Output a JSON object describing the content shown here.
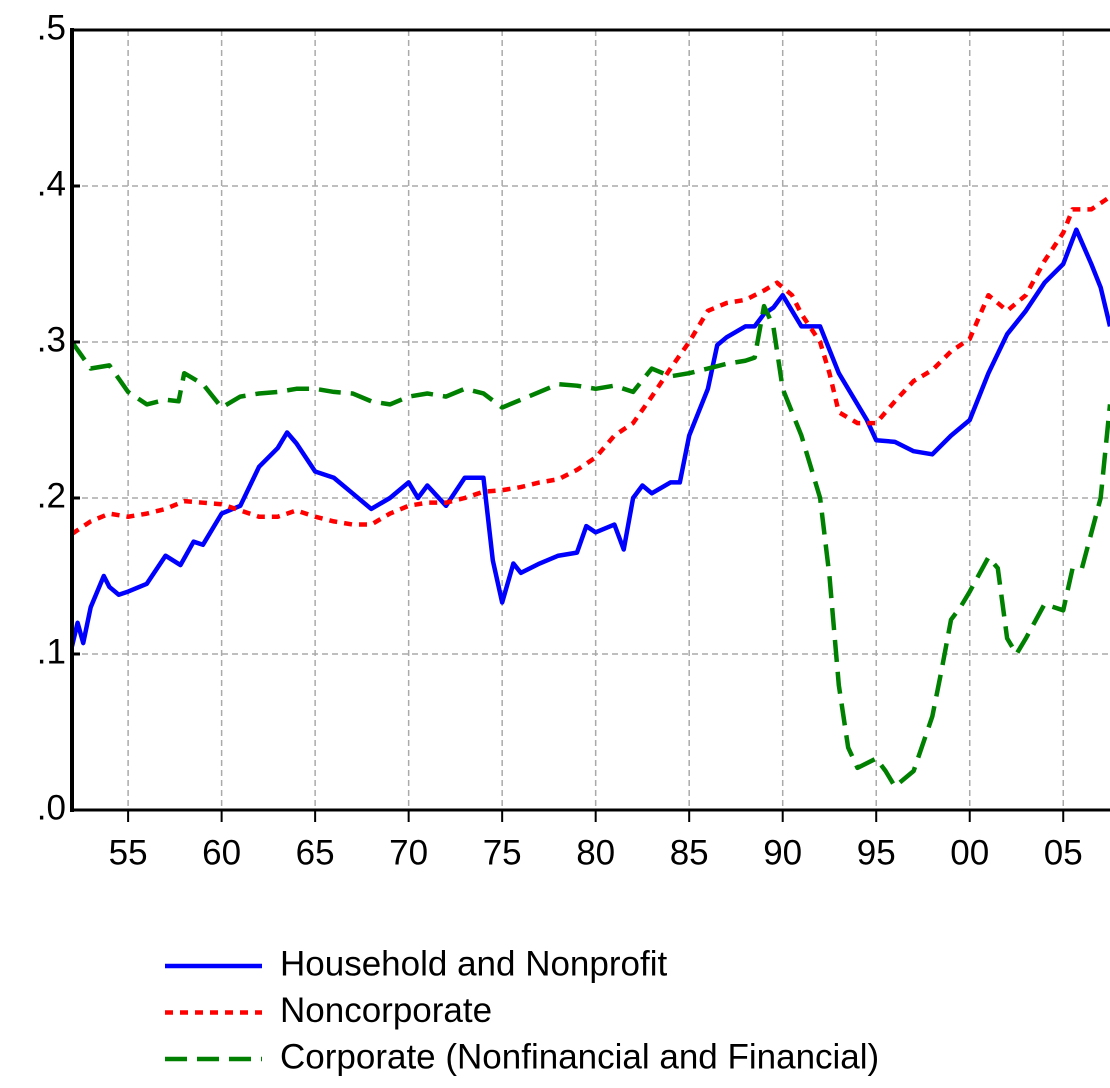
{
  "chart_data": {
    "type": "line",
    "xlim": [
      1952,
      2007.5
    ],
    "ylim": [
      0,
      0.5
    ],
    "xticks": [
      {
        "value": 1955,
        "label": "55"
      },
      {
        "value": 1960,
        "label": "60"
      },
      {
        "value": 1965,
        "label": "65"
      },
      {
        "value": 1970,
        "label": "70"
      },
      {
        "value": 1975,
        "label": "75"
      },
      {
        "value": 1980,
        "label": "80"
      },
      {
        "value": 1985,
        "label": "85"
      },
      {
        "value": 1990,
        "label": "90"
      },
      {
        "value": 1995,
        "label": "95"
      },
      {
        "value": 2000,
        "label": "00"
      },
      {
        "value": 2005,
        "label": "05"
      }
    ],
    "yticks": [
      {
        "value": 0,
        "label": ".0"
      },
      {
        "value": 0.1,
        "label": ".1"
      },
      {
        "value": 0.2,
        "label": ".2"
      },
      {
        "value": 0.3,
        "label": ".3"
      },
      {
        "value": 0.4,
        "label": ".4"
      },
      {
        "value": 0.5,
        "label": ".5"
      }
    ],
    "grid": true,
    "legend": "bottom",
    "series": [
      {
        "name": "Household and Nonprofit",
        "color": "#0000ff",
        "style": "solid",
        "x": [
          1952,
          1952.3,
          1952.6,
          1953,
          1953.7,
          1954,
          1954.5,
          1955,
          1956,
          1957,
          1957.8,
          1958.5,
          1959,
          1960,
          1961,
          1962,
          1963,
          1963.5,
          1964,
          1965,
          1966,
          1967,
          1968,
          1969,
          1970,
          1970.5,
          1971,
          1972,
          1973,
          1974,
          1974.5,
          1975,
          1975.6,
          1976,
          1977,
          1978,
          1979,
          1979.5,
          1980,
          1981,
          1981.5,
          1982,
          1982.5,
          1983,
          1984,
          1984.5,
          1985,
          1986,
          1986.5,
          1987,
          1988,
          1988.5,
          1989,
          1989.5,
          1990,
          1990.5,
          1991,
          1992,
          1993,
          1994,
          1994.5,
          1995,
          1996,
          1997,
          1998,
          1999,
          2000,
          2001,
          2002,
          2003,
          2004,
          2005,
          2005.7,
          2006.5,
          2007,
          2007.5
        ],
        "values": [
          0.105,
          0.12,
          0.107,
          0.13,
          0.15,
          0.143,
          0.138,
          0.14,
          0.145,
          0.163,
          0.157,
          0.172,
          0.17,
          0.19,
          0.195,
          0.22,
          0.232,
          0.242,
          0.235,
          0.217,
          0.213,
          0.203,
          0.193,
          0.2,
          0.21,
          0.2,
          0.208,
          0.195,
          0.213,
          0.213,
          0.16,
          0.133,
          0.158,
          0.152,
          0.158,
          0.163,
          0.165,
          0.182,
          0.178,
          0.183,
          0.167,
          0.2,
          0.208,
          0.203,
          0.21,
          0.21,
          0.24,
          0.27,
          0.298,
          0.303,
          0.31,
          0.31,
          0.318,
          0.322,
          0.33,
          0.32,
          0.31,
          0.31,
          0.28,
          0.26,
          0.25,
          0.237,
          0.236,
          0.23,
          0.228,
          0.24,
          0.25,
          0.28,
          0.305,
          0.32,
          0.338,
          0.35,
          0.372,
          0.35,
          0.335,
          0.31
        ]
      },
      {
        "name": "Noncorporate",
        "color": "#ff0000",
        "style": "dotted",
        "x": [
          1952,
          1953,
          1954,
          1955,
          1956,
          1957,
          1958,
          1959,
          1960,
          1961,
          1962,
          1963,
          1964,
          1965,
          1966,
          1967,
          1968,
          1969,
          1970,
          1971,
          1972,
          1973,
          1974,
          1975,
          1976,
          1977,
          1978,
          1979,
          1980,
          1981,
          1982,
          1983,
          1984,
          1985,
          1986,
          1987,
          1988,
          1989,
          1989.7,
          1990.5,
          1991,
          1992,
          1992.5,
          1993,
          1994,
          1995,
          1996,
          1997,
          1998,
          1999,
          2000,
          2001,
          2002,
          2003,
          2004,
          2005,
          2005.5,
          2006.5,
          2007.5
        ],
        "values": [
          0.177,
          0.185,
          0.19,
          0.188,
          0.19,
          0.193,
          0.198,
          0.197,
          0.196,
          0.192,
          0.188,
          0.188,
          0.192,
          0.188,
          0.185,
          0.183,
          0.183,
          0.19,
          0.195,
          0.197,
          0.197,
          0.2,
          0.204,
          0.205,
          0.207,
          0.21,
          0.212,
          0.218,
          0.226,
          0.24,
          0.248,
          0.265,
          0.283,
          0.3,
          0.32,
          0.325,
          0.327,
          0.333,
          0.338,
          0.33,
          0.318,
          0.3,
          0.28,
          0.255,
          0.248,
          0.248,
          0.262,
          0.275,
          0.282,
          0.294,
          0.302,
          0.33,
          0.32,
          0.33,
          0.352,
          0.37,
          0.385,
          0.385,
          0.393
        ]
      },
      {
        "name": "Corporate (Nonfinancial and Financial)",
        "color": "#008000",
        "style": "dashed",
        "x": [
          1952,
          1953,
          1954,
          1955,
          1956,
          1957,
          1957.7,
          1958,
          1959,
          1960,
          1961,
          1962,
          1963,
          1964,
          1965,
          1966,
          1967,
          1968,
          1969,
          1970,
          1971,
          1972,
          1973,
          1974,
          1975,
          1976,
          1977,
          1978,
          1979,
          1980,
          1981,
          1982,
          1983,
          1984,
          1985,
          1986,
          1987,
          1988,
          1988.5,
          1989,
          1989.5,
          1990,
          1991,
          1992,
          1992.5,
          1993,
          1993.5,
          1994,
          1995,
          1995.5,
          1996,
          1997,
          1998,
          1998.5,
          1999,
          1999.5,
          2000,
          2001,
          2001.5,
          2002,
          2002.5,
          2003,
          2004,
          2005,
          2005.5,
          2006,
          2007,
          2007.5
        ],
        "values": [
          0.3,
          0.283,
          0.285,
          0.268,
          0.26,
          0.263,
          0.262,
          0.28,
          0.273,
          0.258,
          0.265,
          0.267,
          0.268,
          0.27,
          0.27,
          0.268,
          0.267,
          0.262,
          0.26,
          0.265,
          0.267,
          0.265,
          0.27,
          0.267,
          0.258,
          0.263,
          0.268,
          0.273,
          0.272,
          0.27,
          0.272,
          0.268,
          0.283,
          0.278,
          0.28,
          0.283,
          0.286,
          0.288,
          0.29,
          0.323,
          0.31,
          0.27,
          0.24,
          0.2,
          0.15,
          0.08,
          0.04,
          0.027,
          0.033,
          0.025,
          0.015,
          0.025,
          0.06,
          0.09,
          0.122,
          0.13,
          0.14,
          0.162,
          0.155,
          0.11,
          0.1,
          0.11,
          0.132,
          0.128,
          0.155,
          0.155,
          0.2,
          0.26
        ]
      }
    ]
  }
}
